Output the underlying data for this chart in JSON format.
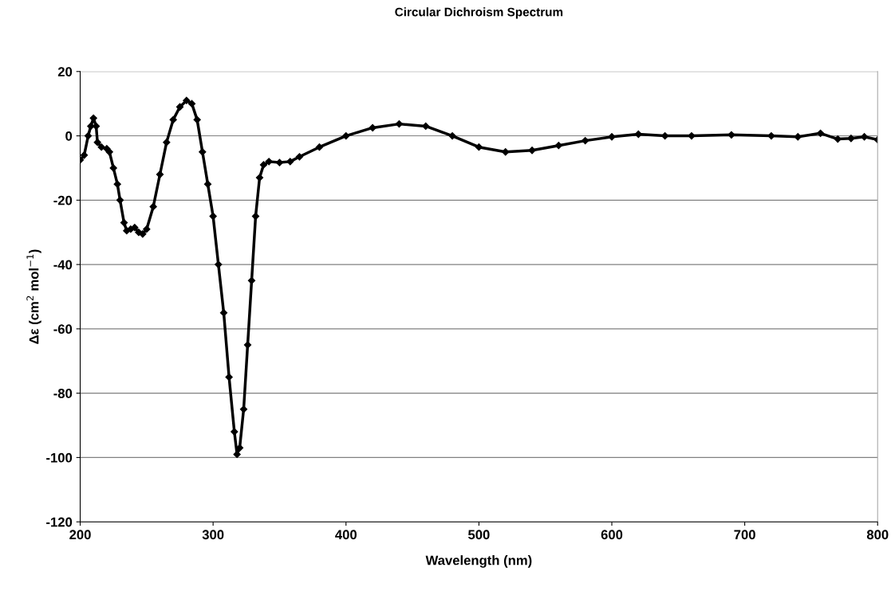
{
  "chart_data": {
    "type": "line",
    "title": "Circular Dichroism Spectrum",
    "xlabel": "Wavelength (nm)",
    "ylabel": "Δε (cm$^{2}$ mol$^{−1}$)",
    "xlim": [
      200,
      800
    ],
    "xticks": [
      200,
      300,
      400,
      500,
      600,
      700,
      800
    ],
    "ylim": [
      -120,
      20
    ],
    "yticks": [
      -120,
      -100,
      -80,
      -60,
      -40,
      -20,
      0,
      20
    ],
    "grid": "y",
    "marker": "diamond",
    "line_style": "solid",
    "series": [
      {
        "color": "#000000",
        "x": [
          200,
          203,
          206,
          208,
          210,
          212,
          213,
          216,
          220,
          222,
          225,
          228,
          230,
          233,
          235,
          238,
          241,
          244,
          247,
          250,
          255,
          260,
          265,
          270,
          275,
          280,
          284,
          288,
          292,
          296,
          300,
          304,
          308,
          312,
          316,
          318,
          320,
          323,
          326,
          329,
          332,
          335,
          338,
          342,
          350,
          358,
          365,
          380,
          400,
          420,
          440,
          460,
          480,
          500,
          520,
          540,
          560,
          580,
          600,
          620,
          640,
          660,
          690,
          720,
          740,
          757,
          770,
          780,
          790,
          800
        ],
        "values": [
          -7.5,
          -6,
          0,
          3,
          5.5,
          3,
          -2,
          -3.5,
          -4,
          -5,
          -10,
          -15,
          -20,
          -27,
          -29.5,
          -29,
          -28.5,
          -30,
          -30.5,
          -29,
          -22,
          -12,
          -2,
          5,
          9,
          11,
          10,
          5,
          -5,
          -15,
          -25,
          -40,
          -55,
          -75,
          -92,
          -99,
          -97,
          -85,
          -65,
          -45,
          -25,
          -13,
          -9,
          -8,
          -8.3,
          -8,
          -6.5,
          -3.5,
          0,
          2.5,
          3.7,
          3,
          0,
          -3.5,
          -5,
          -4.5,
          -3,
          -1.5,
          -0.3,
          0.5,
          0,
          0,
          0.3,
          0,
          -0.3,
          0.8,
          -1,
          -0.8,
          -0.3,
          -1.2
        ]
      }
    ]
  }
}
